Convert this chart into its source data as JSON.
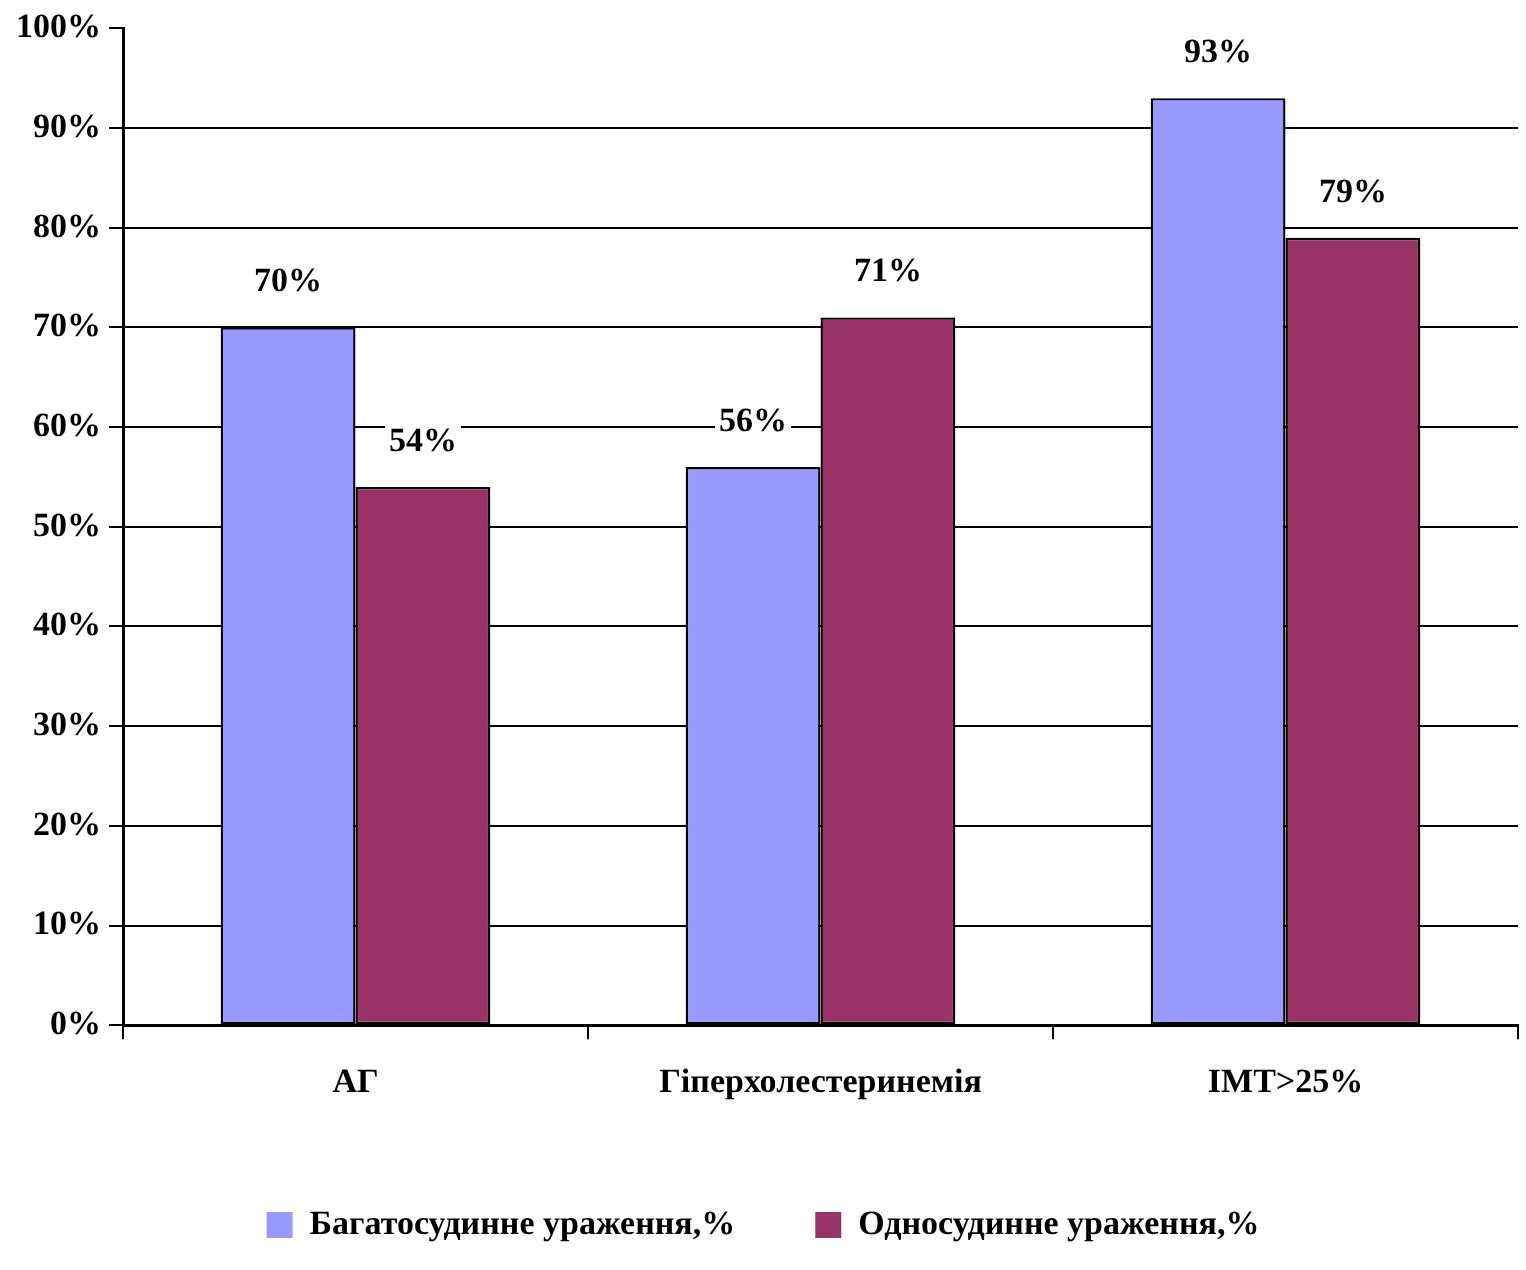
{
  "chart_data": {
    "type": "bar",
    "categories": [
      "АГ",
      "Гіперхолестеринемія",
      "ІМТ>25%"
    ],
    "series": [
      {
        "name": "Багатосудинне ураження,%",
        "color": "#9999ff",
        "values": [
          70,
          56,
          93
        ],
        "value_labels": [
          "70%",
          "56%",
          "93%"
        ]
      },
      {
        "name": "Односудинне ураження,%",
        "color": "#993366",
        "values": [
          54,
          71,
          79
        ],
        "value_labels": [
          "54%",
          "71%",
          "79%"
        ]
      }
    ],
    "ylim": [
      0,
      100
    ],
    "yticks": [
      {
        "value": 0,
        "label": "0%"
      },
      {
        "value": 10,
        "label": "10%"
      },
      {
        "value": 20,
        "label": "20%"
      },
      {
        "value": 30,
        "label": "30%"
      },
      {
        "value": 40,
        "label": "40%"
      },
      {
        "value": 50,
        "label": "50%"
      },
      {
        "value": 60,
        "label": "60%"
      },
      {
        "value": 70,
        "label": "70%"
      },
      {
        "value": 80,
        "label": "80%"
      },
      {
        "value": 90,
        "label": "90%"
      },
      {
        "value": 100,
        "label": "100%"
      }
    ],
    "grid": "y",
    "legend": "bottom"
  }
}
